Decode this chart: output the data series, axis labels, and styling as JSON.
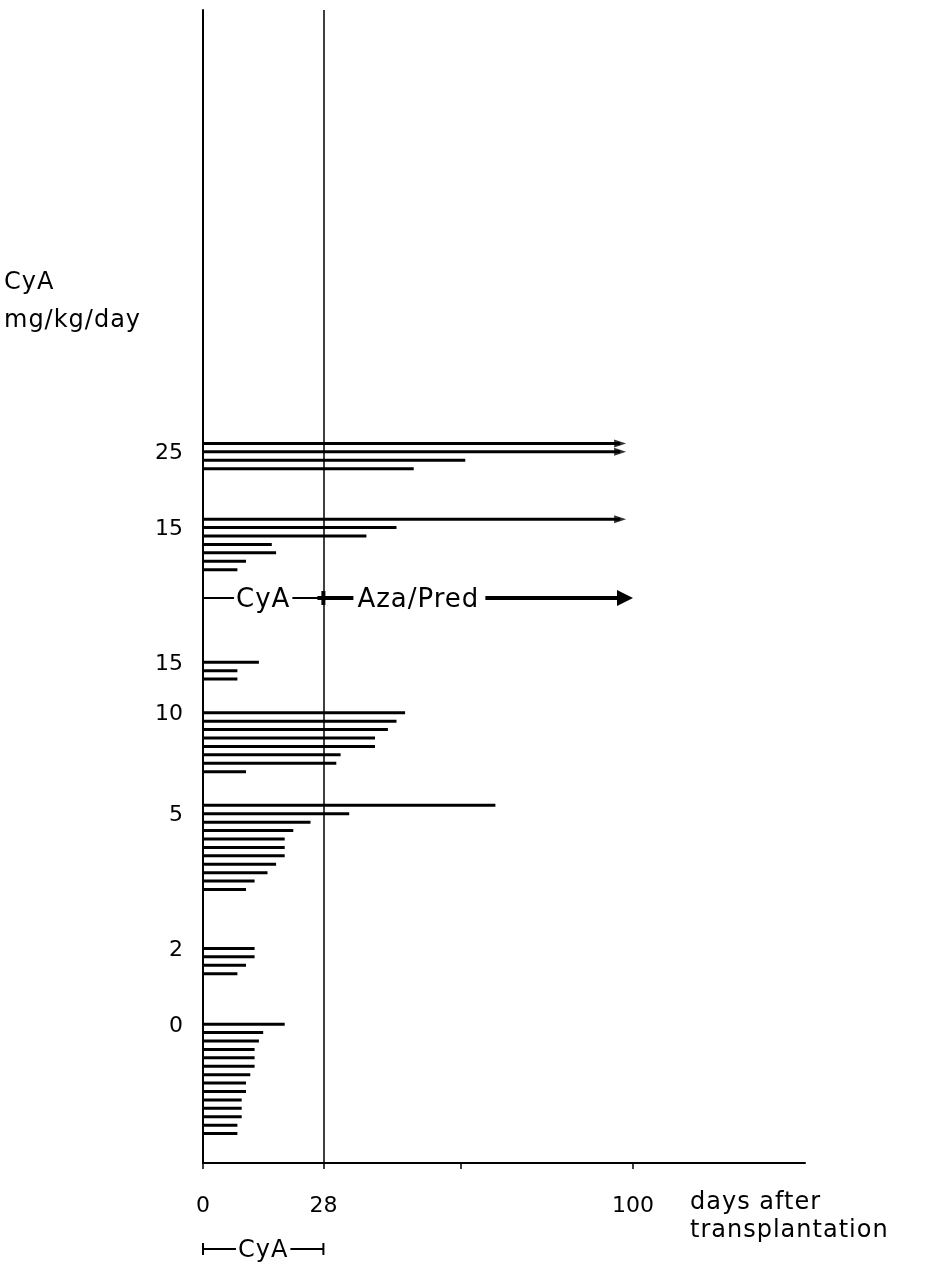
{
  "chart_data": {
    "type": "bar",
    "orientation": "horizontal",
    "xlabel": "days after transplantation",
    "ylabel": "CyA mg/kg/day",
    "categories": [
      null,
      null,
      null,
      null,
      null,
      null,
      null,
      null,
      null,
      null,
      null,
      null,
      null,
      null,
      null,
      null,
      null,
      null,
      null,
      null,
      null,
      null,
      null,
      null,
      null,
      null,
      null,
      null,
      null,
      null,
      null,
      null,
      null,
      null,
      null,
      null,
      null,
      null,
      null,
      null,
      null,
      null,
      null,
      null,
      null,
      null,
      null,
      null,
      null,
      null,
      null,
      null,
      "25",
      null,
      null,
      null,
      null,
      null,
      null,
      null,
      null,
      "15",
      null,
      null,
      null,
      null,
      null,
      null,
      null,
      null,
      null,
      null,
      null,
      null,
      null,
      null,
      null,
      "15",
      null,
      null,
      null,
      null,
      null,
      "10",
      null,
      null,
      null,
      null,
      null,
      null,
      null,
      null,
      null,
      null,
      null,
      "5",
      null,
      null,
      null,
      null,
      null,
      null,
      null,
      null,
      null,
      null,
      null,
      null,
      null,
      null,
      null,
      "2",
      null,
      null,
      null,
      null,
      null,
      null,
      null,
      null,
      "0",
      null,
      null,
      null,
      null,
      null,
      null,
      null,
      null,
      null,
      null,
      null,
      null,
      null,
      null,
      null,
      null
    ],
    "series": [
      {
        "type": "bar",
        "color": "#000000",
        "values": [
          null,
          null,
          null,
          null,
          null,
          null,
          null,
          null,
          null,
          null,
          null,
          null,
          null,
          null,
          null,
          null,
          null,
          null,
          null,
          null,
          null,
          null,
          null,
          null,
          null,
          null,
          null,
          null,
          null,
          null,
          null,
          null,
          null,
          null,
          null,
          null,
          null,
          null,
          null,
          null,
          null,
          null,
          null,
          null,
          null,
          null,
          null,
          null,
          null,
          null,
          null,
          97,
          97,
          61,
          49,
          null,
          null,
          null,
          null,
          null,
          97,
          45,
          38,
          16,
          17,
          10,
          8,
          null,
          null,
          null,
          null,
          null,
          null,
          null,
          null,
          null,
          null,
          13,
          8,
          8,
          null,
          null,
          null,
          47,
          45,
          43,
          40,
          40,
          32,
          31,
          10,
          null,
          null,
          null,
          68,
          34,
          25,
          21,
          19,
          19,
          19,
          17,
          15,
          12,
          10,
          null,
          null,
          null,
          null,
          null,
          null,
          12,
          12,
          10,
          8,
          null,
          null,
          null,
          null,
          null,
          19,
          14,
          13,
          12,
          12,
          12,
          11,
          10,
          10,
          9,
          9,
          9,
          8,
          8,
          null,
          null,
          null
        ]
      },
      {
        "type": "scatter",
        "marker": "triangle",
        "color": "#000000",
        "values": [
          null,
          null,
          null,
          null,
          null,
          null,
          null,
          null,
          null,
          null,
          null,
          null,
          null,
          null,
          null,
          null,
          null,
          null,
          null,
          null,
          null,
          null,
          null,
          null,
          null,
          null,
          null,
          null,
          null,
          null,
          null,
          null,
          null,
          null,
          null,
          null,
          null,
          null,
          null,
          null,
          null,
          null,
          null,
          null,
          null,
          null,
          null,
          null,
          null,
          null,
          null,
          97,
          97,
          null,
          null,
          null,
          null,
          null,
          null,
          null,
          97,
          null,
          null,
          null,
          null,
          null,
          null,
          null,
          null,
          null,
          null,
          null,
          null,
          null,
          null,
          null,
          null,
          null,
          null,
          null,
          null,
          null,
          null,
          null,
          null,
          null,
          null,
          null,
          null,
          null,
          null,
          null,
          null,
          null,
          null,
          null,
          null,
          null,
          null,
          null,
          null,
          null,
          null,
          null,
          null,
          null,
          null,
          null,
          null,
          null,
          null,
          null,
          null,
          null,
          null,
          null,
          null,
          null,
          null,
          null,
          null,
          null,
          null,
          null,
          null,
          null,
          null,
          null,
          null,
          null,
          null,
          null,
          null,
          null,
          null,
          null,
          null
        ]
      }
    ],
    "xlim": [
      0,
      140
    ],
    "xticks": [
      0,
      28,
      {
        "value": 60,
        "label": null
      },
      100
    ],
    "ref_lines": [
      {
        "axis": "x",
        "value": 28,
        "color": "#000000"
      }
    ],
    "annotations": [
      "CyA",
      "Aza/Pred",
      "CyA"
    ]
  }
}
